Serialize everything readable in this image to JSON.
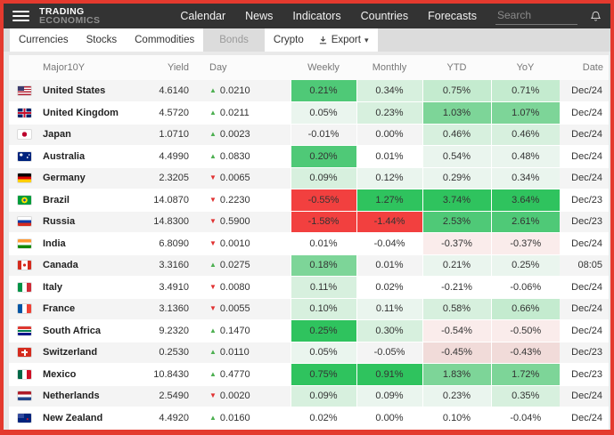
{
  "header": {
    "logo_line1": "TRADING",
    "logo_line2": "ECONOMICS",
    "nav": [
      "Calendar",
      "News",
      "Indicators",
      "Countries",
      "Forecasts"
    ],
    "search_placeholder": "Search"
  },
  "tabs": {
    "group1": [
      "Currencies",
      "Stocks",
      "Commodities"
    ],
    "active": "Bonds",
    "group2": [
      "Crypto"
    ],
    "export_label": "Export"
  },
  "icons": {
    "up_arrow": "▲",
    "down_arrow": "▼",
    "caret_down": "▾"
  },
  "colors": {
    "frame_border": "#e43a2e",
    "topbar_bg": "#333333",
    "up_arrow": "#4caf50",
    "down_arrow": "#e03131",
    "heat": {
      "g1": "#eaf5ee",
      "g2": "#d7f0de",
      "g3": "#c4ebcf",
      "g4": "#7dd598",
      "g5": "#4fc977",
      "g6": "#2fc35e",
      "r1": "#faeceb",
      "r2": "#f1dbd9",
      "r3": "#f2403f"
    }
  },
  "table": {
    "columns": [
      "Major10Y",
      "Yield",
      "Day",
      "Weekly",
      "Monthly",
      "YTD",
      "YoY",
      "Date"
    ],
    "rows": [
      {
        "country": "United States",
        "flag": "us",
        "yield": "4.6140",
        "day_dir": "up",
        "day": "0.0210",
        "weekly": {
          "value": "0.21%",
          "level": "g5"
        },
        "monthly": {
          "value": "0.34%",
          "level": "g2"
        },
        "ytd": {
          "value": "0.75%",
          "level": "g3"
        },
        "yoy": {
          "value": "0.71%",
          "level": "g3"
        },
        "date": "Dec/24"
      },
      {
        "country": "United Kingdom",
        "flag": "gb",
        "yield": "4.5720",
        "day_dir": "up",
        "day": "0.0211",
        "weekly": {
          "value": "0.05%",
          "level": "g1"
        },
        "monthly": {
          "value": "0.23%",
          "level": "g2"
        },
        "ytd": {
          "value": "1.03%",
          "level": "g4"
        },
        "yoy": {
          "value": "1.07%",
          "level": "g4"
        },
        "date": "Dec/24"
      },
      {
        "country": "Japan",
        "flag": "jp",
        "yield": "1.0710",
        "day_dir": "up",
        "day": "0.0023",
        "weekly": {
          "value": "-0.01%",
          "level": ""
        },
        "monthly": {
          "value": "0.00%",
          "level": ""
        },
        "ytd": {
          "value": "0.46%",
          "level": "g2"
        },
        "yoy": {
          "value": "0.46%",
          "level": "g2"
        },
        "date": "Dec/24"
      },
      {
        "country": "Australia",
        "flag": "au",
        "yield": "4.4990",
        "day_dir": "up",
        "day": "0.0830",
        "weekly": {
          "value": "0.20%",
          "level": "g5"
        },
        "monthly": {
          "value": "0.01%",
          "level": ""
        },
        "ytd": {
          "value": "0.54%",
          "level": "g1"
        },
        "yoy": {
          "value": "0.48%",
          "level": "g1"
        },
        "date": "Dec/24"
      },
      {
        "country": "Germany",
        "flag": "de",
        "yield": "2.3205",
        "day_dir": "down",
        "day": "0.0065",
        "weekly": {
          "value": "0.09%",
          "level": "g2"
        },
        "monthly": {
          "value": "0.12%",
          "level": "g1"
        },
        "ytd": {
          "value": "0.29%",
          "level": "g1"
        },
        "yoy": {
          "value": "0.34%",
          "level": "g1"
        },
        "date": "Dec/24"
      },
      {
        "country": "Brazil",
        "flag": "br",
        "yield": "14.0870",
        "day_dir": "down",
        "day": "0.2230",
        "weekly": {
          "value": "-0.55%",
          "level": "r3"
        },
        "monthly": {
          "value": "1.27%",
          "level": "g6"
        },
        "ytd": {
          "value": "3.74%",
          "level": "g6"
        },
        "yoy": {
          "value": "3.64%",
          "level": "g6"
        },
        "date": "Dec/23"
      },
      {
        "country": "Russia",
        "flag": "ru",
        "yield": "14.8300",
        "day_dir": "down",
        "day": "0.5900",
        "weekly": {
          "value": "-1.58%",
          "level": "r3"
        },
        "monthly": {
          "value": "-1.44%",
          "level": "r3"
        },
        "ytd": {
          "value": "2.53%",
          "level": "g5"
        },
        "yoy": {
          "value": "2.61%",
          "level": "g5"
        },
        "date": "Dec/23"
      },
      {
        "country": "India",
        "flag": "in",
        "yield": "6.8090",
        "day_dir": "down",
        "day": "0.0010",
        "weekly": {
          "value": "0.01%",
          "level": ""
        },
        "monthly": {
          "value": "-0.04%",
          "level": ""
        },
        "ytd": {
          "value": "-0.37%",
          "level": "r1"
        },
        "yoy": {
          "value": "-0.37%",
          "level": "r1"
        },
        "date": "Dec/24"
      },
      {
        "country": "Canada",
        "flag": "ca",
        "yield": "3.3160",
        "day_dir": "up",
        "day": "0.0275",
        "weekly": {
          "value": "0.18%",
          "level": "g4"
        },
        "monthly": {
          "value": "0.01%",
          "level": ""
        },
        "ytd": {
          "value": "0.21%",
          "level": "g1"
        },
        "yoy": {
          "value": "0.25%",
          "level": "g1"
        },
        "date": "08:05"
      },
      {
        "country": "Italy",
        "flag": "it",
        "yield": "3.4910",
        "day_dir": "down",
        "day": "0.0080",
        "weekly": {
          "value": "0.11%",
          "level": "g2"
        },
        "monthly": {
          "value": "0.02%",
          "level": ""
        },
        "ytd": {
          "value": "-0.21%",
          "level": ""
        },
        "yoy": {
          "value": "-0.06%",
          "level": ""
        },
        "date": "Dec/24"
      },
      {
        "country": "France",
        "flag": "fr",
        "yield": "3.1360",
        "day_dir": "down",
        "day": "0.0055",
        "weekly": {
          "value": "0.10%",
          "level": "g2"
        },
        "monthly": {
          "value": "0.11%",
          "level": "g1"
        },
        "ytd": {
          "value": "0.58%",
          "level": "g2"
        },
        "yoy": {
          "value": "0.66%",
          "level": "g3"
        },
        "date": "Dec/24"
      },
      {
        "country": "South Africa",
        "flag": "za",
        "yield": "9.2320",
        "day_dir": "up",
        "day": "0.1470",
        "weekly": {
          "value": "0.25%",
          "level": "g6"
        },
        "monthly": {
          "value": "0.30%",
          "level": "g2"
        },
        "ytd": {
          "value": "-0.54%",
          "level": "r1"
        },
        "yoy": {
          "value": "-0.50%",
          "level": "r1"
        },
        "date": "Dec/24"
      },
      {
        "country": "Switzerland",
        "flag": "ch",
        "yield": "0.2530",
        "day_dir": "up",
        "day": "0.0110",
        "weekly": {
          "value": "0.05%",
          "level": "g1"
        },
        "monthly": {
          "value": "-0.05%",
          "level": ""
        },
        "ytd": {
          "value": "-0.45%",
          "level": "r2"
        },
        "yoy": {
          "value": "-0.43%",
          "level": "r2"
        },
        "date": "Dec/23"
      },
      {
        "country": "Mexico",
        "flag": "mx",
        "yield": "10.8430",
        "day_dir": "up",
        "day": "0.4770",
        "weekly": {
          "value": "0.75%",
          "level": "g6"
        },
        "monthly": {
          "value": "0.91%",
          "level": "g6"
        },
        "ytd": {
          "value": "1.83%",
          "level": "g4"
        },
        "yoy": {
          "value": "1.72%",
          "level": "g4"
        },
        "date": "Dec/23"
      },
      {
        "country": "Netherlands",
        "flag": "nl",
        "yield": "2.5490",
        "day_dir": "down",
        "day": "0.0020",
        "weekly": {
          "value": "0.09%",
          "level": "g2"
        },
        "monthly": {
          "value": "0.09%",
          "level": "g1"
        },
        "ytd": {
          "value": "0.23%",
          "level": "g1"
        },
        "yoy": {
          "value": "0.35%",
          "level": "g2"
        },
        "date": "Dec/24"
      },
      {
        "country": "New Zealand",
        "flag": "nz",
        "yield": "4.4920",
        "day_dir": "up",
        "day": "0.0160",
        "weekly": {
          "value": "0.02%",
          "level": ""
        },
        "monthly": {
          "value": "0.00%",
          "level": ""
        },
        "ytd": {
          "value": "0.10%",
          "level": ""
        },
        "yoy": {
          "value": "-0.04%",
          "level": ""
        },
        "date": "Dec/24"
      }
    ]
  }
}
